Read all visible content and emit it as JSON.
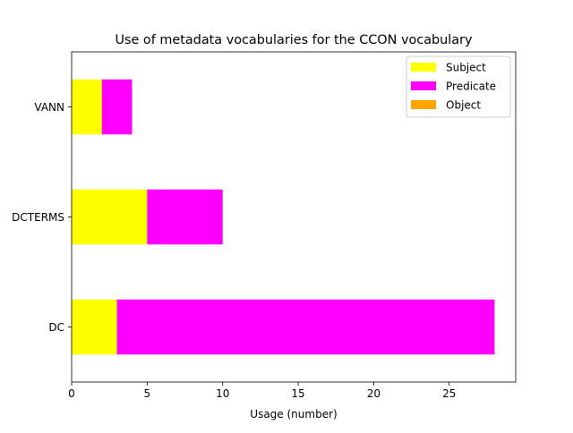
{
  "chart_data": {
    "type": "bar",
    "orientation": "horizontal",
    "stacked": true,
    "title": "Use of metadata vocabularies for the CCON vocabulary",
    "xlabel": "Usage (number)",
    "ylabel": "",
    "categories": [
      "DC",
      "DCTERMS",
      "VANN"
    ],
    "series": [
      {
        "name": "Subject",
        "color": "#ffff00",
        "values": [
          3,
          5,
          2
        ]
      },
      {
        "name": "Predicate",
        "color": "#ff00ff",
        "values": [
          25,
          5,
          2
        ]
      },
      {
        "name": "Object",
        "color": "#ffa500",
        "values": [
          0,
          0,
          0
        ]
      }
    ],
    "xlim": [
      0,
      29.4
    ],
    "xticks": [
      0,
      5,
      10,
      15,
      20,
      25
    ],
    "grid": false,
    "legend_position": "top-right"
  }
}
